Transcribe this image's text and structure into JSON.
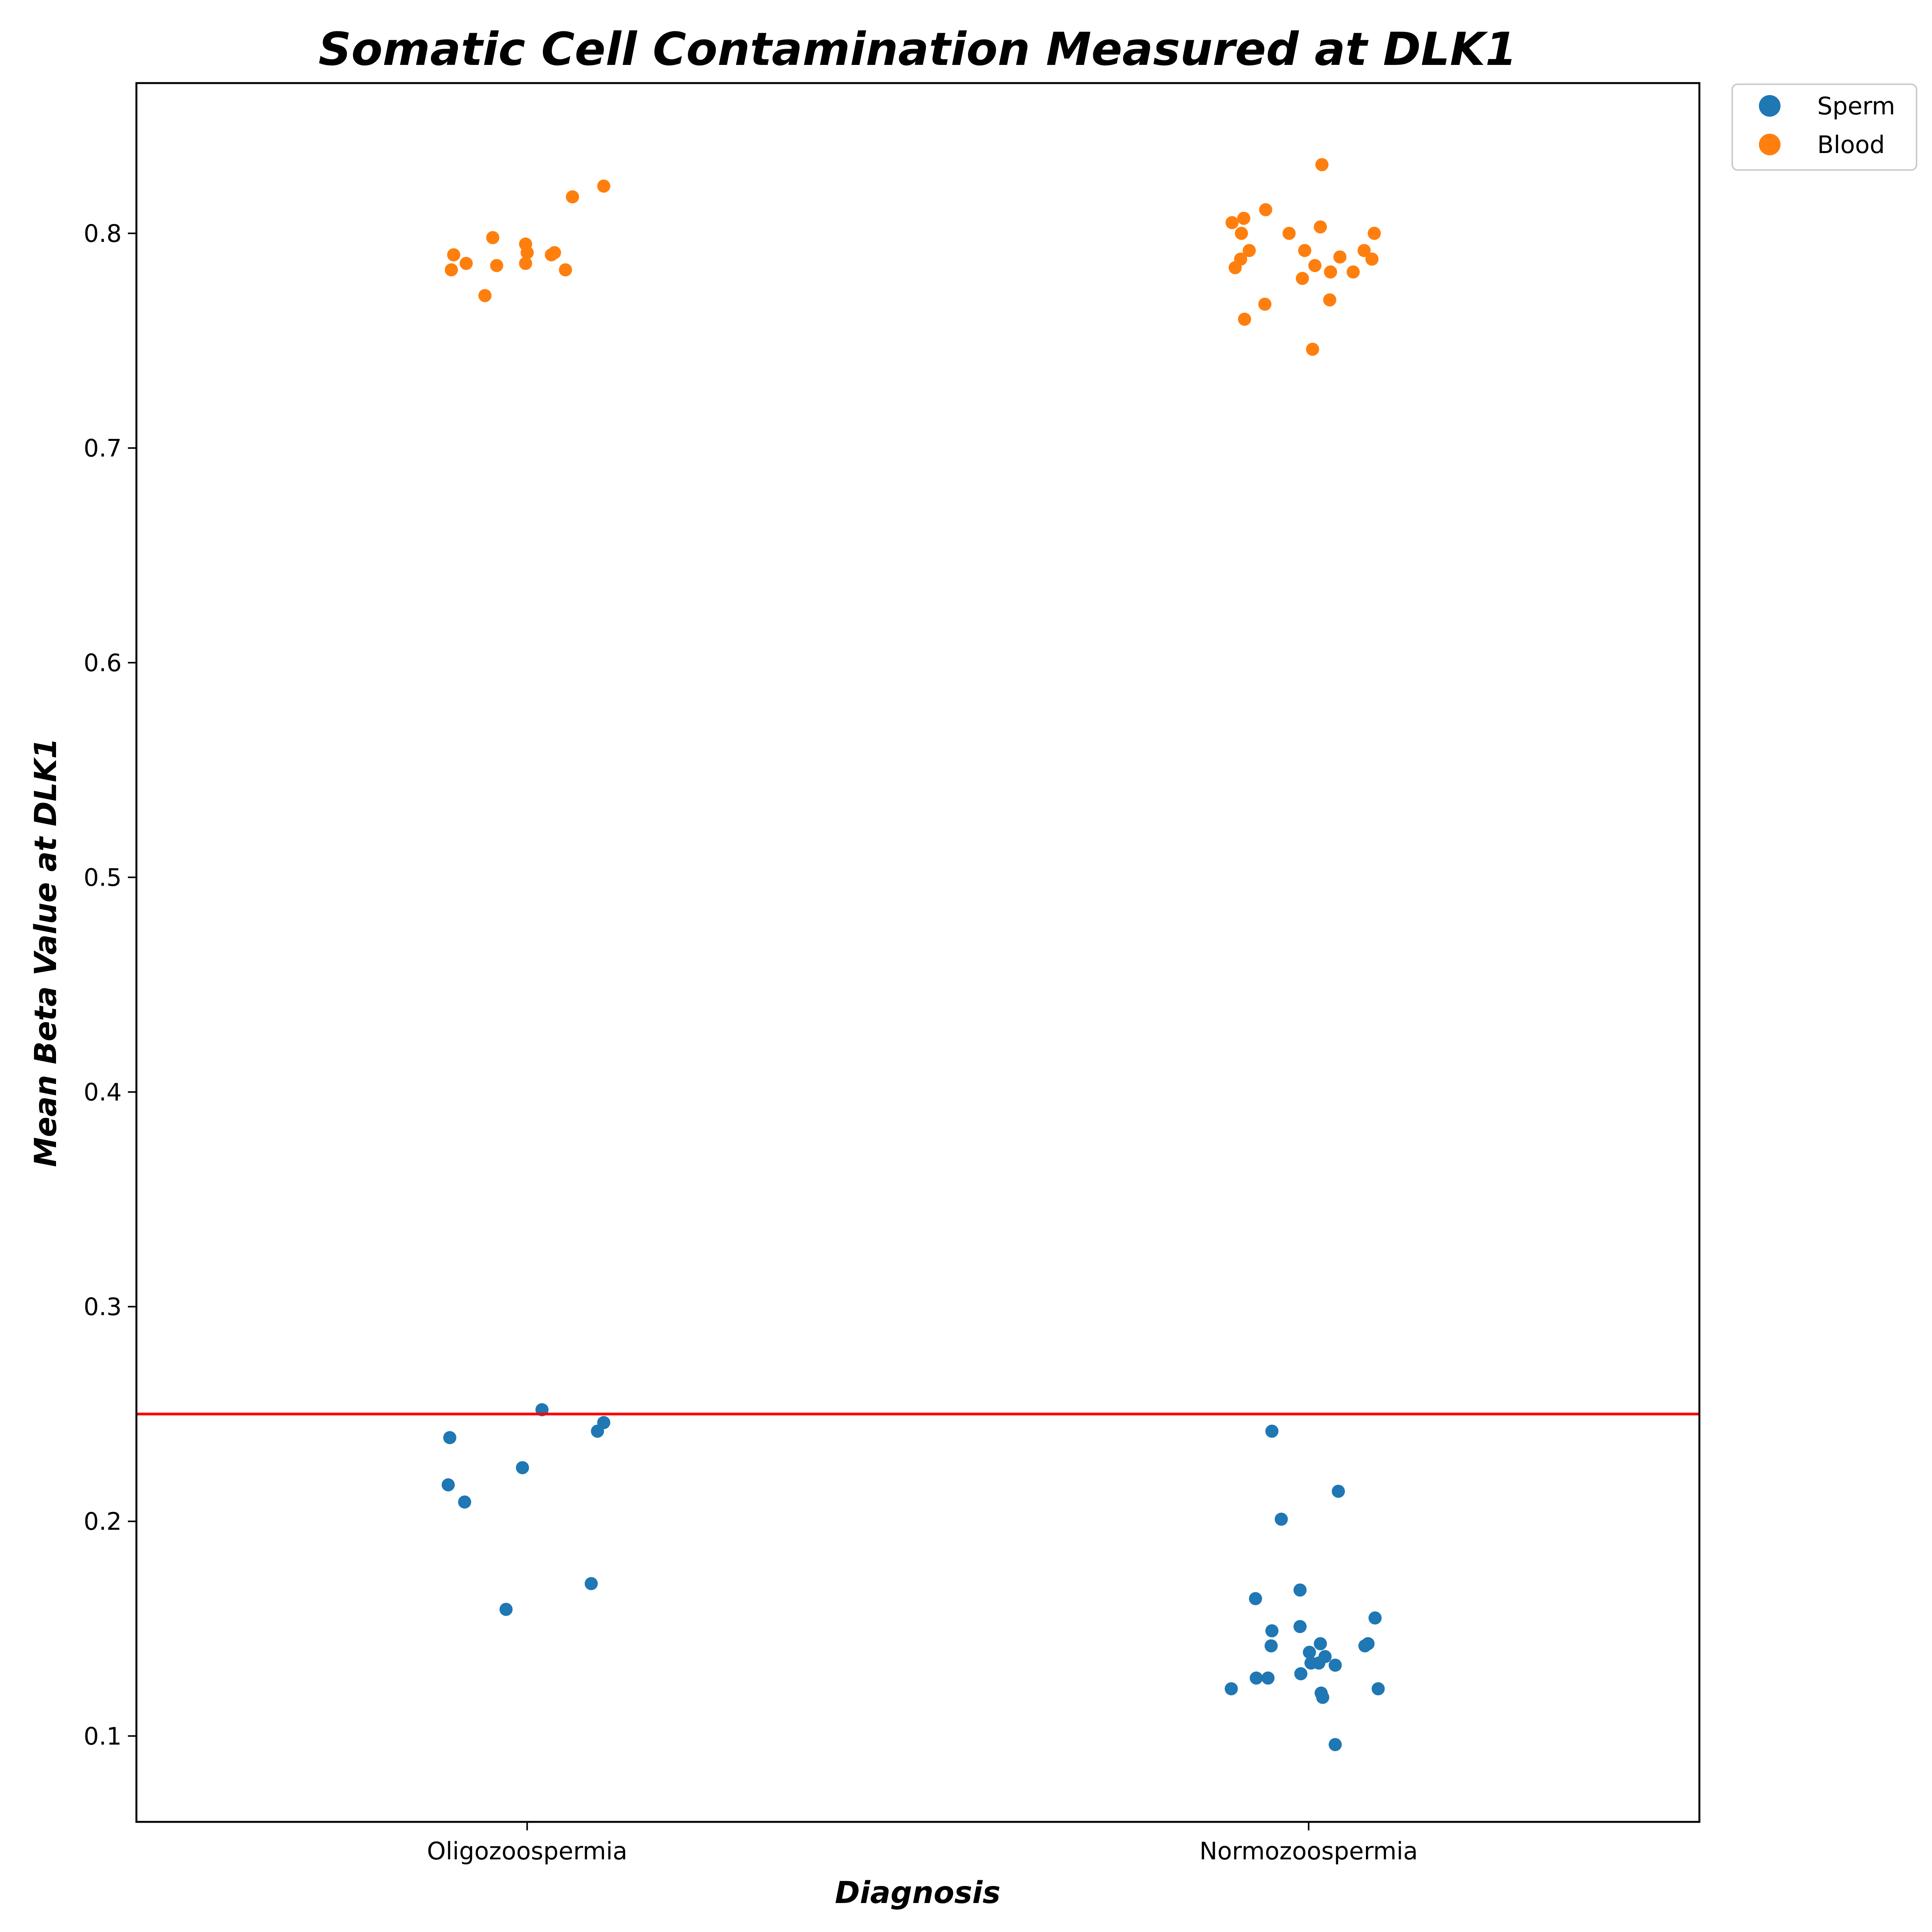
{
  "chart_data": {
    "type": "scatter",
    "title": "Somatic Cell Contamination Measured at DLK1",
    "xlabel": "Diagnosis",
    "ylabel": "Mean Beta Value at DLK1",
    "categories": [
      "Oligozoospermia",
      "Normozoospermia"
    ],
    "ylim": [
      0.06,
      0.87
    ],
    "yticks": [
      "0.1",
      "0.2",
      "0.3",
      "0.4",
      "0.5",
      "0.6",
      "0.7",
      "0.8"
    ],
    "grid": false,
    "legend_position": "outside top-right",
    "threshold_line": {
      "y": 0.25,
      "color": "#ff0000"
    },
    "series": [
      {
        "name": "Sperm",
        "color": "#1f77b4",
        "points": [
          {
            "x": "Oligozoospermia",
            "jitter": -0.099,
            "y": 0.239
          },
          {
            "x": "Oligozoospermia",
            "jitter": -0.101,
            "y": 0.217
          },
          {
            "x": "Oligozoospermia",
            "jitter": -0.08,
            "y": 0.209
          },
          {
            "x": "Oligozoospermia",
            "jitter": -0.027,
            "y": 0.159
          },
          {
            "x": "Oligozoospermia",
            "jitter": -0.006,
            "y": 0.225
          },
          {
            "x": "Oligozoospermia",
            "jitter": 0.019,
            "y": 0.252
          },
          {
            "x": "Oligozoospermia",
            "jitter": 0.082,
            "y": 0.171
          },
          {
            "x": "Oligozoospermia",
            "jitter": 0.09,
            "y": 0.242
          },
          {
            "x": "Oligozoospermia",
            "jitter": 0.098,
            "y": 0.246
          },
          {
            "x": "Normozoospermia",
            "jitter": -0.047,
            "y": 0.242
          },
          {
            "x": "Normozoospermia",
            "jitter": -0.035,
            "y": 0.201
          },
          {
            "x": "Normozoospermia",
            "jitter": 0.038,
            "y": 0.214
          },
          {
            "x": "Normozoospermia",
            "jitter": -0.068,
            "y": 0.164
          },
          {
            "x": "Normozoospermia",
            "jitter": -0.011,
            "y": 0.168
          },
          {
            "x": "Normozoospermia",
            "jitter": -0.047,
            "y": 0.149
          },
          {
            "x": "Normozoospermia",
            "jitter": -0.011,
            "y": 0.151
          },
          {
            "x": "Normozoospermia",
            "jitter": 0.085,
            "y": 0.155
          },
          {
            "x": "Normozoospermia",
            "jitter": -0.048,
            "y": 0.142
          },
          {
            "x": "Normozoospermia",
            "jitter": 0.001,
            "y": 0.139
          },
          {
            "x": "Normozoospermia",
            "jitter": 0.015,
            "y": 0.143
          },
          {
            "x": "Normozoospermia",
            "jitter": 0.021,
            "y": 0.137
          },
          {
            "x": "Normozoospermia",
            "jitter": 0.003,
            "y": 0.134
          },
          {
            "x": "Normozoospermia",
            "jitter": 0.013,
            "y": 0.134
          },
          {
            "x": "Normozoospermia",
            "jitter": 0.034,
            "y": 0.133
          },
          {
            "x": "Normozoospermia",
            "jitter": 0.072,
            "y": 0.142
          },
          {
            "x": "Normozoospermia",
            "jitter": 0.076,
            "y": 0.143
          },
          {
            "x": "Normozoospermia",
            "jitter": -0.067,
            "y": 0.127
          },
          {
            "x": "Normozoospermia",
            "jitter": -0.052,
            "y": 0.127
          },
          {
            "x": "Normozoospermia",
            "jitter": -0.01,
            "y": 0.129
          },
          {
            "x": "Normozoospermia",
            "jitter": -0.099,
            "y": 0.122
          },
          {
            "x": "Normozoospermia",
            "jitter": 0.016,
            "y": 0.12
          },
          {
            "x": "Normozoospermia",
            "jitter": 0.018,
            "y": 0.118
          },
          {
            "x": "Normozoospermia",
            "jitter": 0.089,
            "y": 0.122
          },
          {
            "x": "Normozoospermia",
            "jitter": 0.034,
            "y": 0.096
          }
        ]
      },
      {
        "name": "Blood",
        "color": "#ff7f0e",
        "points": [
          {
            "x": "Oligozoospermia",
            "jitter": -0.094,
            "y": 0.79
          },
          {
            "x": "Oligozoospermia",
            "jitter": -0.078,
            "y": 0.786
          },
          {
            "x": "Oligozoospermia",
            "jitter": -0.097,
            "y": 0.783
          },
          {
            "x": "Oligozoospermia",
            "jitter": -0.044,
            "y": 0.798
          },
          {
            "x": "Oligozoospermia",
            "jitter": -0.039,
            "y": 0.785
          },
          {
            "x": "Oligozoospermia",
            "jitter": -0.054,
            "y": 0.771
          },
          {
            "x": "Oligozoospermia",
            "jitter": -0.002,
            "y": 0.795
          },
          {
            "x": "Oligozoospermia",
            "jitter": 0.0,
            "y": 0.791
          },
          {
            "x": "Oligozoospermia",
            "jitter": -0.002,
            "y": 0.786
          },
          {
            "x": "Oligozoospermia",
            "jitter": 0.031,
            "y": 0.79
          },
          {
            "x": "Oligozoospermia",
            "jitter": 0.035,
            "y": 0.791
          },
          {
            "x": "Oligozoospermia",
            "jitter": 0.049,
            "y": 0.783
          },
          {
            "x": "Oligozoospermia",
            "jitter": 0.058,
            "y": 0.817
          },
          {
            "x": "Oligozoospermia",
            "jitter": 0.098,
            "y": 0.822
          },
          {
            "x": "Normozoospermia",
            "jitter": -0.098,
            "y": 0.805
          },
          {
            "x": "Normozoospermia",
            "jitter": -0.083,
            "y": 0.807
          },
          {
            "x": "Normozoospermia",
            "jitter": -0.055,
            "y": 0.811
          },
          {
            "x": "Normozoospermia",
            "jitter": -0.086,
            "y": 0.8
          },
          {
            "x": "Normozoospermia",
            "jitter": -0.076,
            "y": 0.792
          },
          {
            "x": "Normozoospermia",
            "jitter": -0.087,
            "y": 0.788
          },
          {
            "x": "Normozoospermia",
            "jitter": -0.094,
            "y": 0.784
          },
          {
            "x": "Normozoospermia",
            "jitter": -0.025,
            "y": 0.8
          },
          {
            "x": "Normozoospermia",
            "jitter": -0.005,
            "y": 0.792
          },
          {
            "x": "Normozoospermia",
            "jitter": 0.015,
            "y": 0.803
          },
          {
            "x": "Normozoospermia",
            "jitter": 0.017,
            "y": 0.832
          },
          {
            "x": "Normozoospermia",
            "jitter": 0.084,
            "y": 0.8
          },
          {
            "x": "Normozoospermia",
            "jitter": 0.071,
            "y": 0.792
          },
          {
            "x": "Normozoospermia",
            "jitter": 0.04,
            "y": 0.789
          },
          {
            "x": "Normozoospermia",
            "jitter": 0.081,
            "y": 0.788
          },
          {
            "x": "Normozoospermia",
            "jitter": 0.008,
            "y": 0.785
          },
          {
            "x": "Normozoospermia",
            "jitter": 0.028,
            "y": 0.782
          },
          {
            "x": "Normozoospermia",
            "jitter": 0.057,
            "y": 0.782
          },
          {
            "x": "Normozoospermia",
            "jitter": -0.008,
            "y": 0.779
          },
          {
            "x": "Normozoospermia",
            "jitter": 0.027,
            "y": 0.769
          },
          {
            "x": "Normozoospermia",
            "jitter": -0.056,
            "y": 0.767
          },
          {
            "x": "Normozoospermia",
            "jitter": -0.082,
            "y": 0.76
          },
          {
            "x": "Normozoospermia",
            "jitter": 0.005,
            "y": 0.746
          }
        ]
      }
    ]
  }
}
